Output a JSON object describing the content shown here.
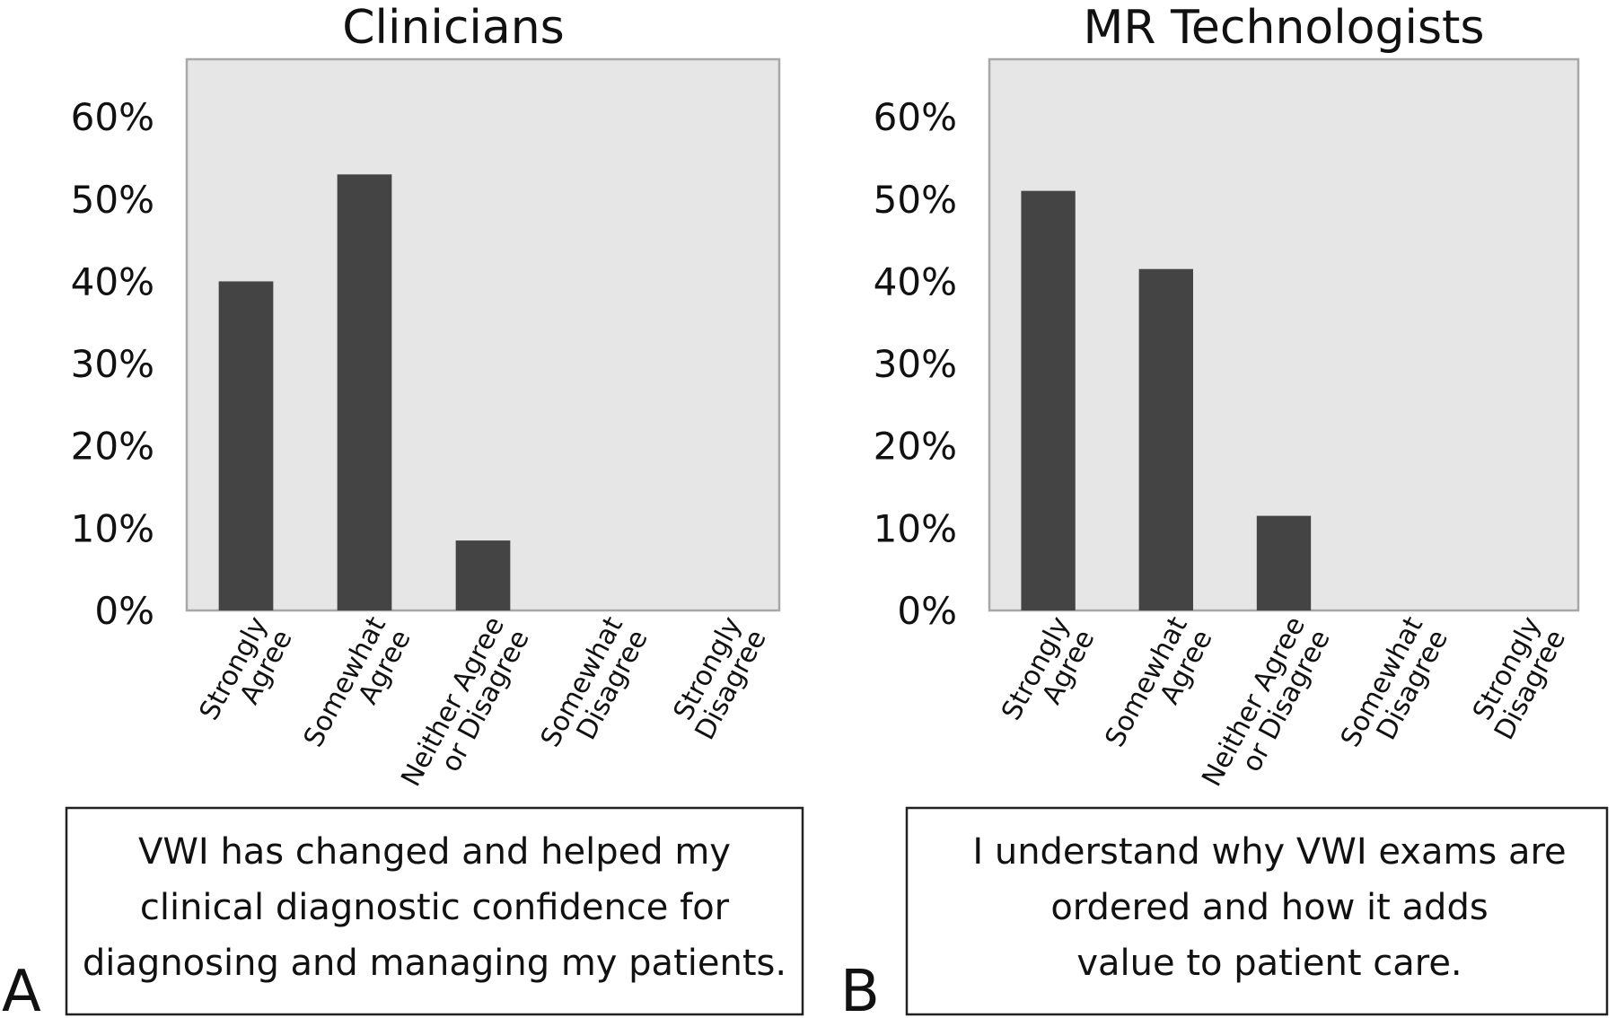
{
  "chart_data": [
    {
      "type": "bar",
      "title": "Clinicians",
      "categories": [
        [
          "Strongly",
          "Agree"
        ],
        [
          "Somewhat",
          "Agree"
        ],
        [
          "Neither Agree",
          "or Disagree"
        ],
        [
          "Somewhat",
          "Disagree"
        ],
        [
          "Strongly",
          "Disagree"
        ]
      ],
      "values": [
        40,
        53,
        8.5,
        0,
        0
      ],
      "ylim": [
        0,
        67
      ],
      "yticks": [
        "0%",
        "10%",
        "20%",
        "30%",
        "40%",
        "50%",
        "60%"
      ],
      "ytick_values": [
        0,
        10,
        20,
        30,
        40,
        50,
        60
      ],
      "bar_color": "#444444",
      "background": "#e6e6e6",
      "grid": false,
      "caption": [
        "VWI has changed and helped my",
        "clinical diagnostic confidence for",
        "diagnosing and managing my patients."
      ],
      "panel_label": "A"
    },
    {
      "type": "bar",
      "title": "MR Technologists",
      "categories": [
        [
          "Strongly",
          "Agree"
        ],
        [
          "Somewhat",
          "Agree"
        ],
        [
          "Neither Agree",
          "or Disagree"
        ],
        [
          "Somewhat",
          "Disagree"
        ],
        [
          "Strongly",
          "Disagree"
        ]
      ],
      "values": [
        51,
        41.5,
        11.5,
        0,
        0
      ],
      "ylim": [
        0,
        67
      ],
      "yticks": [
        "0%",
        "10%",
        "20%",
        "30%",
        "40%",
        "50%",
        "60%"
      ],
      "ytick_values": [
        0,
        10,
        20,
        30,
        40,
        50,
        60
      ],
      "bar_color": "#444444",
      "background": "#e6e6e6",
      "grid": false,
      "caption": [
        "I understand why VWI exams are",
        "ordered and how it adds",
        "value to patient care."
      ],
      "panel_label": "B"
    }
  ]
}
